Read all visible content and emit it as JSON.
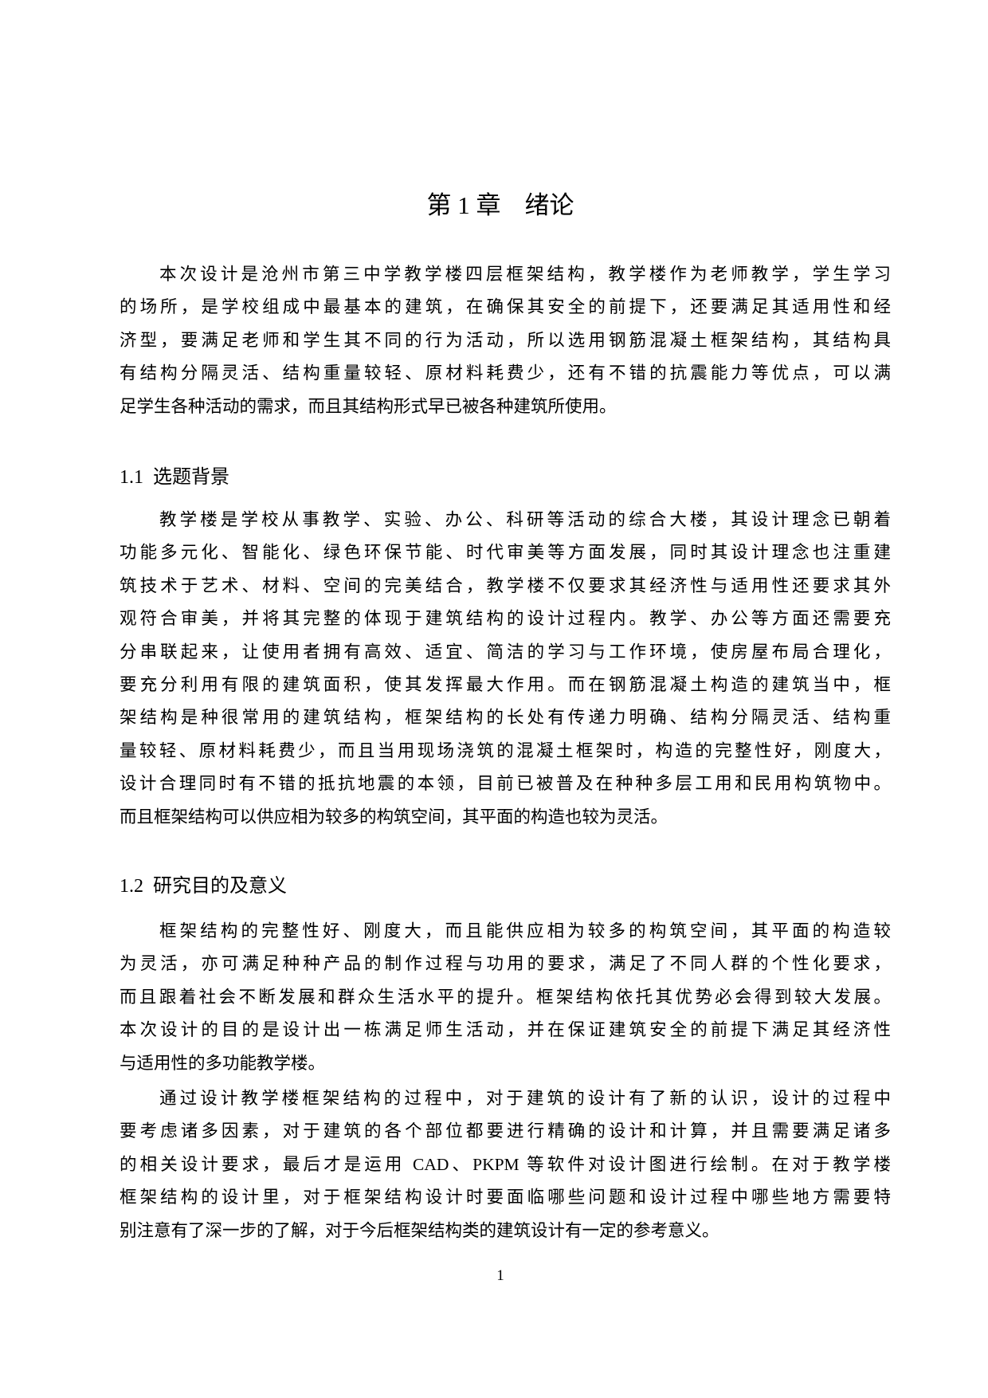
{
  "chapter": {
    "number": "第 1 章",
    "title": "绪论"
  },
  "intro": [
    "本次设计是沧州市第三中学教学楼四层框架结构，教学楼作为老师教学，学生学习",
    "的场所，是学校组成中最基本的建筑，在确保其安全的前提下，还要满足其适用性和经",
    "济型，要满足老师和学生其不同的行为活动，所以选用钢筋混凝土框架结构，其结构具",
    "有结构分隔灵活、结构重量较轻、原材料耗费少，还有不错的抗震能力等优点，可以满",
    "足学生各种活动的需求，而且其结构形式早已被各种建筑所使用。"
  ],
  "sections": [
    {
      "number": "1.1",
      "title": "选题背景",
      "paragraphs": [
        [
          "教学楼是学校从事教学、实验、办公、科研等活动的综合大楼，其设计理念已朝着",
          "功能多元化、智能化、绿色环保节能、时代审美等方面发展，同时其设计理念也注重建",
          "筑技术于艺术、材料、空间的完美结合，教学楼不仅要求其经济性与适用性还要求其外",
          "观符合审美，并将其完整的体现于建筑结构的设计过程内。教学、办公等方面还需要充",
          "分串联起来，让使用者拥有高效、适宜、简洁的学习与工作环境，使房屋布局合理化，",
          "要充分利用有限的建筑面积，使其发挥最大作用。而在钢筋混凝土构造的建筑当中，框",
          "架结构是种很常用的建筑结构，框架结构的长处有传递力明确、结构分隔灵活、结构重",
          "量较轻、原材料耗费少，而且当用现场浇筑的混凝土框架时，构造的完整性好，刚度大，",
          "设计合理同时有不错的抵抗地震的本领，目前已被普及在种种多层工用和民用构筑物中。",
          "而且框架结构可以供应相为较多的构筑空间，其平面的构造也较为灵活。"
        ]
      ]
    },
    {
      "number": "1.2",
      "title": "研究目的及意义",
      "paragraphs": [
        [
          "框架结构的完整性好、刚度大，而且能供应相为较多的构筑空间，其平面的构造较",
          "为灵活，亦可满足种种产品的制作过程与功用的要求，满足了不同人群的个性化要求，",
          "而且跟着社会不断发展和群众生活水平的提升。框架结构依托其优势必会得到较大发展。",
          "本次设计的目的是设计出一栋满足师生活动，并在保证建筑安全的前提下满足其经济性",
          "与适用性的多功能教学楼。"
        ],
        [
          "通过设计教学楼框架结构的过程中，对于建筑的设计有了新的认识，设计的过程中",
          "要考虑诸多因素，对于建筑的各个部位都要进行精确的设计和计算，并且需要满足诸多",
          "的相关设计要求，最后才是运用 CAD、PKPM 等软件对设计图进行绘制。在对于教学楼",
          "框架结构的设计里，对于框架结构设计时要面临哪些问题和设计过程中哪些地方需要特",
          "别注意有了深一步的了解，对于今后框架结构类的建筑设计有一定的参考意义。"
        ]
      ]
    }
  ],
  "page_number": "1"
}
